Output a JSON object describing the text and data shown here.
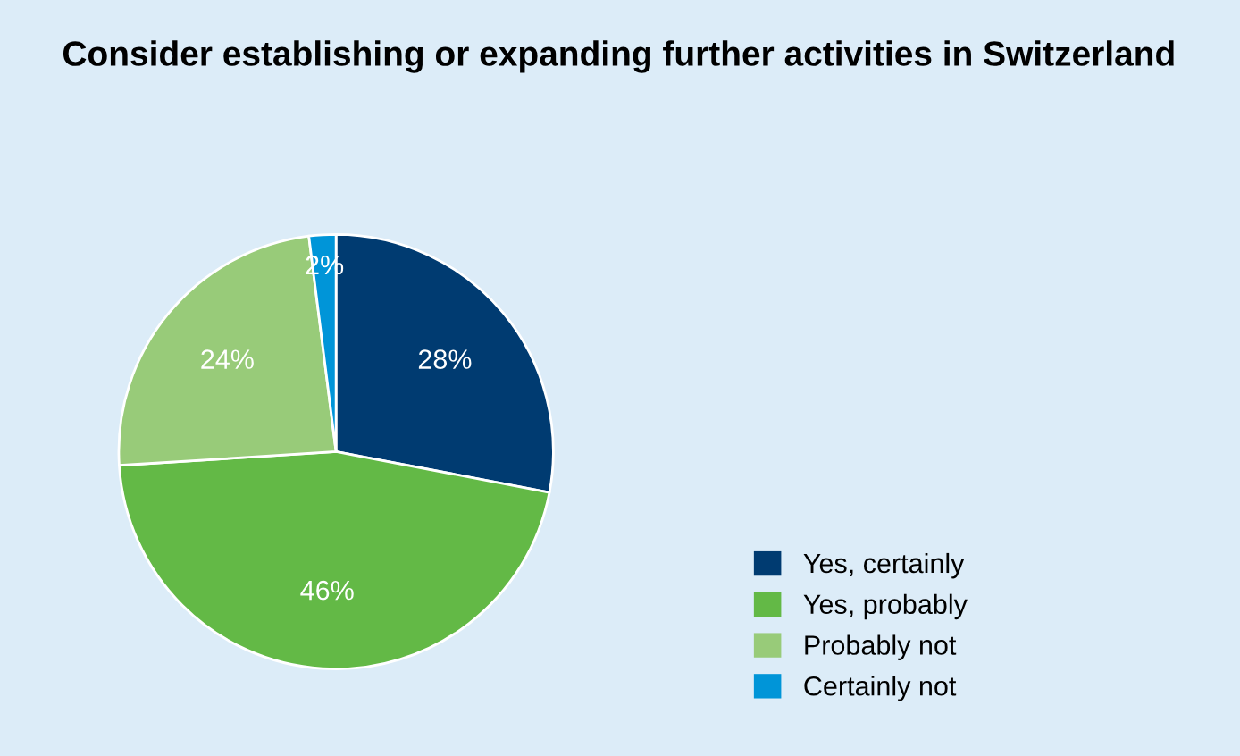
{
  "chart_data": {
    "type": "pie",
    "title": "Consider establishing or expanding further activities in Switzerland",
    "categories": [
      "Yes, certainly",
      "Yes, probably",
      "Probably not",
      "Certainly not"
    ],
    "values": [
      28,
      46,
      24,
      2
    ],
    "colors": [
      "#003b71",
      "#63b946",
      "#98cb79",
      "#0095d8"
    ],
    "value_labels": [
      "28%",
      "46%",
      "24%",
      "2%"
    ],
    "legend": "bottom right"
  }
}
